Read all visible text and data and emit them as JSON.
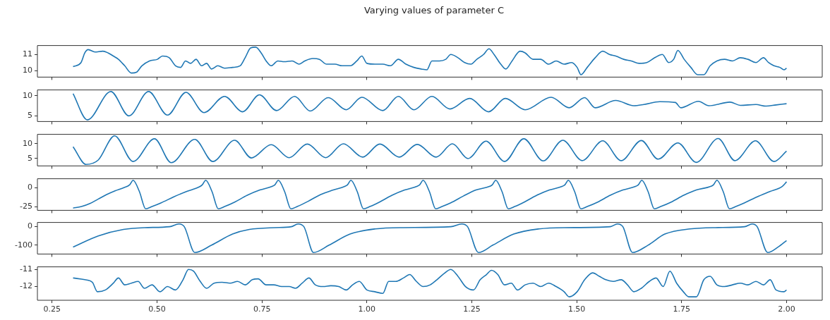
{
  "chart_data": [
    {
      "type": "line",
      "title": "Varying values of parameter C",
      "color": "#1f77b4",
      "tick_labels": "y",
      "xlim": [
        0.215,
        2.085
      ],
      "ylim": [
        9.6,
        11.55
      ],
      "yticks": [
        10,
        11
      ],
      "x": [
        0.3,
        0.319,
        0.328,
        0.336,
        0.352,
        0.371,
        0.383,
        0.396,
        0.408,
        0.423,
        0.439,
        0.451,
        0.464,
        0.482,
        0.501,
        0.513,
        0.529,
        0.544,
        0.556,
        0.568,
        0.58,
        0.593,
        0.606,
        0.618,
        0.63,
        0.645,
        0.661,
        0.68,
        0.698,
        0.71,
        0.723,
        0.735,
        0.748,
        0.76,
        0.772,
        0.788,
        0.803,
        0.822,
        0.838,
        0.852,
        0.871,
        0.887,
        0.904,
        0.924,
        0.941,
        0.961,
        0.976,
        0.988,
        1.0,
        1.019,
        1.038,
        1.056,
        1.075,
        1.093,
        1.112,
        1.13,
        1.143,
        1.155,
        1.173,
        1.188,
        1.2,
        1.217,
        1.233,
        1.248,
        1.262,
        1.278,
        1.291,
        1.303,
        1.319,
        1.331,
        1.346,
        1.365,
        1.377,
        1.396,
        1.414,
        1.433,
        1.451,
        1.47,
        1.488,
        1.501,
        1.51,
        1.525,
        1.544,
        1.562,
        1.578,
        1.593,
        1.612,
        1.63,
        1.649,
        1.667,
        1.686,
        1.704,
        1.719,
        1.731,
        1.741,
        1.756,
        1.772,
        1.788,
        1.803,
        1.818,
        1.834,
        1.852,
        1.871,
        1.89,
        1.908,
        1.927,
        1.945,
        1.957,
        1.97,
        1.984,
        1.994,
        2.0
      ],
      "values": [
        10.25,
        10.5,
        11.1,
        11.3,
        11.15,
        11.2,
        11.1,
        10.9,
        10.7,
        10.3,
        9.85,
        9.9,
        10.3,
        10.6,
        10.7,
        10.9,
        10.8,
        10.3,
        10.2,
        10.6,
        10.45,
        10.7,
        10.3,
        10.45,
        10.1,
        10.3,
        10.15,
        10.2,
        10.3,
        10.8,
        11.4,
        11.45,
        11.1,
        10.6,
        10.3,
        10.6,
        10.55,
        10.6,
        10.4,
        10.6,
        10.75,
        10.7,
        10.4,
        10.4,
        10.3,
        10.3,
        10.6,
        10.9,
        10.45,
        10.4,
        10.4,
        10.3,
        10.7,
        10.4,
        10.2,
        10.1,
        10.05,
        10.6,
        10.6,
        10.7,
        11.0,
        10.8,
        10.5,
        10.4,
        10.7,
        11.0,
        11.35,
        11.0,
        10.4,
        10.1,
        10.6,
        11.2,
        11.1,
        10.7,
        10.7,
        10.4,
        10.6,
        10.4,
        10.5,
        10.2,
        9.75,
        10.2,
        10.8,
        11.2,
        11.0,
        10.9,
        10.7,
        10.6,
        10.45,
        10.5,
        10.8,
        11.0,
        10.5,
        10.7,
        11.25,
        10.7,
        10.2,
        9.75,
        9.75,
        10.3,
        10.6,
        10.7,
        10.6,
        10.8,
        10.7,
        10.5,
        10.8,
        10.5,
        10.3,
        10.2,
        10.05,
        10.15
      ]
    },
    {
      "type": "line",
      "color": "#1f77b4",
      "tick_labels": "y",
      "xlim": [
        0.215,
        2.085
      ],
      "ylim": [
        3.6,
        11.4
      ],
      "yticks": [
        5,
        10
      ],
      "x": [
        0.3,
        0.334,
        0.39,
        0.433,
        0.48,
        0.525,
        0.569,
        0.612,
        0.661,
        0.704,
        0.744,
        0.785,
        0.828,
        0.865,
        0.908,
        0.951,
        0.988,
        1.038,
        1.075,
        1.112,
        1.155,
        1.198,
        1.245,
        1.29,
        1.33,
        1.377,
        1.439,
        1.482,
        1.519,
        1.544,
        1.593,
        1.636,
        1.66,
        1.698,
        1.735,
        1.748,
        1.79,
        1.815,
        1.865,
        1.89,
        1.927,
        1.951,
        1.975,
        2.0
      ],
      "values": [
        10.5,
        4,
        11,
        5,
        11,
        5.2,
        10.8,
        5.8,
        9.8,
        6,
        10.2,
        6.3,
        9.8,
        6.2,
        9.5,
        6.5,
        9.6,
        6.3,
        9.8,
        6.5,
        9.8,
        6.7,
        9.3,
        6,
        9.3,
        6.5,
        9.6,
        7,
        9.5,
        7,
        8.8,
        7.5,
        7.8,
        8.5,
        8.3,
        7,
        8.6,
        7.5,
        8.4,
        7.6,
        7.8,
        7.4,
        7.7,
        8
      ]
    },
    {
      "type": "line",
      "color": "#1f77b4",
      "tick_labels": "y",
      "xlim": [
        0.215,
        2.085
      ],
      "ylim": [
        2.5,
        13.2
      ],
      "yticks": [
        5,
        10
      ],
      "x": [
        0.3,
        0.331,
        0.36,
        0.399,
        0.443,
        0.494,
        0.534,
        0.59,
        0.633,
        0.685,
        0.725,
        0.772,
        0.815,
        0.858,
        0.902,
        0.944,
        0.99,
        1.031,
        1.077,
        1.12,
        1.165,
        1.204,
        1.241,
        1.284,
        1.328,
        1.374,
        1.42,
        1.467,
        1.513,
        1.562,
        1.606,
        1.654,
        1.694,
        1.741,
        1.785,
        1.837,
        1.877,
        1.926,
        1.97,
        2.0
      ],
      "values": [
        9,
        3,
        4.5,
        12.7,
        4,
        11.7,
        3.6,
        11.5,
        4,
        11.2,
        5.2,
        9.7,
        5.3,
        9.9,
        5.3,
        10,
        5.5,
        9.9,
        5.5,
        9.8,
        5.5,
        10,
        5,
        10.9,
        4,
        11.7,
        4.2,
        11.2,
        4.3,
        11,
        4.3,
        11.1,
        4.8,
        10.3,
        3.7,
        11.8,
        4.3,
        11,
        4,
        7.5
      ]
    },
    {
      "type": "line",
      "color": "#1f77b4",
      "tick_labels": "y",
      "xlim": [
        0.215,
        2.085
      ],
      "ylim": [
        -30,
        12
      ],
      "yticks": [
        -25,
        0
      ],
      "x": [
        0.3,
        0.32,
        0.34,
        0.36,
        0.38,
        0.4,
        0.42,
        0.435,
        0.443,
        0.458,
        0.473,
        0.488,
        0.51,
        0.54,
        0.57,
        0.6,
        0.608,
        0.616,
        0.631,
        0.646,
        0.661,
        0.685,
        0.715,
        0.745,
        0.775,
        0.781,
        0.789,
        0.804,
        0.819,
        0.834,
        0.86,
        0.89,
        0.92,
        0.948,
        0.954,
        0.962,
        0.977,
        0.992,
        1.007,
        1.03,
        1.06,
        1.09,
        1.12,
        1.126,
        1.134,
        1.149,
        1.164,
        1.179,
        1.2,
        1.23,
        1.26,
        1.293,
        1.299,
        1.307,
        1.322,
        1.337,
        1.352,
        1.375,
        1.405,
        1.435,
        1.466,
        1.472,
        1.48,
        1.495,
        1.51,
        1.525,
        1.55,
        1.58,
        1.61,
        1.641,
        1.647,
        1.655,
        1.67,
        1.685,
        1.7,
        1.725,
        1.755,
        1.785,
        1.82,
        1.826,
        1.834,
        1.849,
        1.864,
        1.879,
        1.9,
        1.93,
        1.96,
        1.99,
        2.0
      ],
      "values": [
        -27,
        -25,
        -21,
        -15,
        -9,
        -4,
        0,
        4,
        10,
        -5,
        -28,
        -25,
        -20,
        -12,
        -5,
        1,
        4,
        10,
        -5,
        -28,
        -25,
        -19,
        -10,
        -3,
        2,
        4,
        10,
        -5,
        -28,
        -25,
        -18,
        -9,
        -3,
        2,
        4,
        10,
        -5,
        -28,
        -25,
        -19,
        -10,
        -3,
        2,
        4,
        10,
        -5,
        -28,
        -25,
        -20,
        -11,
        -3,
        2,
        4,
        10,
        -5,
        -28,
        -25,
        -19,
        -10,
        -3,
        2,
        4,
        10,
        -5,
        -28,
        -25,
        -19,
        -10,
        -3,
        2,
        4,
        10,
        -5,
        -28,
        -25,
        -19,
        -10,
        -3,
        2,
        4,
        10,
        -5,
        -28,
        -25,
        -20,
        -12,
        -5,
        2,
        8
      ]
    },
    {
      "type": "line",
      "color": "#1f77b4",
      "tick_labels": "y",
      "xlim": [
        0.215,
        2.085
      ],
      "ylim": [
        -148,
        23
      ],
      "yticks": [
        -100,
        0
      ],
      "x": [
        0.3,
        0.36,
        0.42,
        0.47,
        0.53,
        0.552,
        0.565,
        0.59,
        0.63,
        0.68,
        0.72,
        0.78,
        0.82,
        0.836,
        0.85,
        0.873,
        0.91,
        0.96,
        1.02,
        1.08,
        1.2,
        1.226,
        1.24,
        1.266,
        1.3,
        1.35,
        1.41,
        1.47,
        1.58,
        1.597,
        1.61,
        1.633,
        1.67,
        1.71,
        1.77,
        1.83,
        1.9,
        1.918,
        1.93,
        1.955,
        1.98,
        2.0
      ],
      "values": [
        -110,
        -50,
        -15,
        -5,
        0,
        15,
        0,
        -140,
        -100,
        -40,
        -15,
        -5,
        0,
        15,
        0,
        -140,
        -100,
        -40,
        -12,
        -5,
        0,
        15,
        0,
        -140,
        -100,
        -40,
        -12,
        -5,
        0,
        15,
        0,
        -140,
        -100,
        -40,
        -12,
        -5,
        0,
        15,
        0,
        -140,
        -110,
        -75
      ]
    },
    {
      "type": "line",
      "color": "#1f77b4",
      "xlim": [
        0.215,
        2.085
      ],
      "xticks": [
        {
          "value": 0.25,
          "label": "0.25"
        },
        {
          "value": 0.5,
          "label": "0.50"
        },
        {
          "value": 0.75,
          "label": "0.75"
        },
        {
          "value": 1,
          "label": "1.00"
        },
        {
          "value": 1.25,
          "label": "1.25"
        },
        {
          "value": 1.5,
          "label": "1.50"
        },
        {
          "value": 1.75,
          "label": "1.75"
        },
        {
          "value": 2,
          "label": "2.00"
        }
      ],
      "ylim": [
        -12.8,
        -10.85
      ],
      "yticks": [
        -12,
        -11
      ],
      "x": [
        0.3,
        0.328,
        0.346,
        0.358,
        0.377,
        0.396,
        0.408,
        0.423,
        0.439,
        0.455,
        0.47,
        0.488,
        0.507,
        0.525,
        0.544,
        0.562,
        0.575,
        0.587,
        0.603,
        0.618,
        0.636,
        0.655,
        0.674,
        0.692,
        0.71,
        0.727,
        0.741,
        0.76,
        0.778,
        0.797,
        0.815,
        0.83,
        0.846,
        0.862,
        0.877,
        0.896,
        0.914,
        0.933,
        0.951,
        0.966,
        0.982,
        1.0,
        1.019,
        1.038,
        1.052,
        1.069,
        1.087,
        1.102,
        1.118,
        1.134,
        1.151,
        1.167,
        1.186,
        1.2,
        1.217,
        1.235,
        1.254,
        1.27,
        1.285,
        1.297,
        1.312,
        1.328,
        1.344,
        1.359,
        1.377,
        1.396,
        1.414,
        1.433,
        1.451,
        1.47,
        1.482,
        1.501,
        1.519,
        1.538,
        1.554,
        1.569,
        1.587,
        1.606,
        1.621,
        1.636,
        1.654,
        1.673,
        1.689,
        1.706,
        1.722,
        1.738,
        1.754,
        1.767,
        1.785,
        1.803,
        1.818,
        1.834,
        1.852,
        1.871,
        1.89,
        1.908,
        1.927,
        1.945,
        1.961,
        1.975,
        1.994,
        2.0
      ],
      "values": [
        -11.5,
        -11.6,
        -11.75,
        -12.3,
        -12.2,
        -11.8,
        -11.5,
        -11.9,
        -11.8,
        -11.7,
        -12.1,
        -11.9,
        -12.3,
        -12.0,
        -12.2,
        -11.6,
        -11.0,
        -11.1,
        -11.7,
        -12.1,
        -11.8,
        -11.75,
        -11.8,
        -11.7,
        -11.9,
        -11.6,
        -11.55,
        -11.9,
        -11.9,
        -12.0,
        -12.0,
        -12.1,
        -11.8,
        -11.5,
        -11.9,
        -12.0,
        -11.95,
        -12.0,
        -12.2,
        -11.9,
        -11.7,
        -12.2,
        -12.3,
        -12.4,
        -11.7,
        -11.7,
        -11.5,
        -11.3,
        -11.7,
        -12.0,
        -11.9,
        -11.6,
        -11.2,
        -11.0,
        -11.4,
        -12.0,
        -12.2,
        -11.6,
        -11.3,
        -11.05,
        -11.3,
        -11.9,
        -11.8,
        -12.2,
        -11.9,
        -11.8,
        -12.0,
        -11.8,
        -12.0,
        -12.3,
        -12.6,
        -12.3,
        -11.6,
        -11.2,
        -11.4,
        -11.6,
        -11.7,
        -11.6,
        -11.9,
        -12.3,
        -12.1,
        -11.7,
        -11.5,
        -12.0,
        -11.1,
        -11.8,
        -12.3,
        -12.6,
        -12.6,
        -11.6,
        -11.4,
        -11.9,
        -12.0,
        -11.9,
        -11.8,
        -11.9,
        -11.7,
        -11.9,
        -11.6,
        -12.2,
        -12.3,
        -12.2
      ]
    }
  ]
}
